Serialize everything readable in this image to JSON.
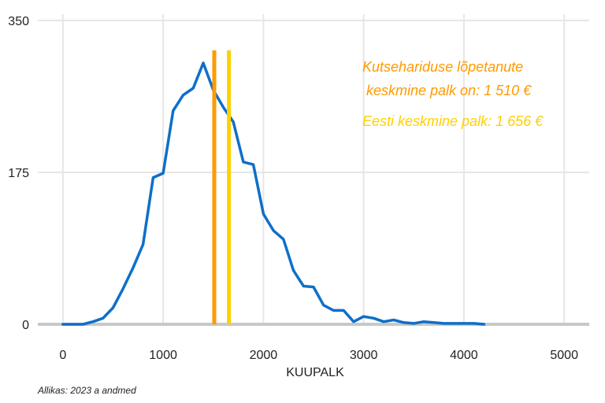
{
  "chart_data": {
    "type": "line",
    "xlabel": "KUUPALK",
    "ylabel": "",
    "xlim": [
      -250,
      5250
    ],
    "ylim": [
      0,
      350
    ],
    "x_ticks": [
      0,
      1000,
      2000,
      3000,
      4000,
      5000
    ],
    "y_ticks": [
      0,
      175,
      350
    ],
    "grid": true,
    "series": [
      {
        "color": "#0e6fc9",
        "points": [
          [
            0,
            0
          ],
          [
            100,
            0
          ],
          [
            200,
            0
          ],
          [
            300,
            3
          ],
          [
            400,
            7
          ],
          [
            500,
            19
          ],
          [
            600,
            41
          ],
          [
            700,
            65
          ],
          [
            800,
            92
          ],
          [
            900,
            169
          ],
          [
            1000,
            174
          ],
          [
            1100,
            246
          ],
          [
            1200,
            264
          ],
          [
            1300,
            272
          ],
          [
            1400,
            301
          ],
          [
            1500,
            270
          ],
          [
            1600,
            250
          ],
          [
            1700,
            233
          ],
          [
            1800,
            187
          ],
          [
            1900,
            184
          ],
          [
            2000,
            127
          ],
          [
            2100,
            108
          ],
          [
            2200,
            98
          ],
          [
            2300,
            62
          ],
          [
            2400,
            44
          ],
          [
            2500,
            43
          ],
          [
            2600,
            22
          ],
          [
            2700,
            16
          ],
          [
            2800,
            16
          ],
          [
            2900,
            3
          ],
          [
            3000,
            9
          ],
          [
            3100,
            7
          ],
          [
            3200,
            3
          ],
          [
            3300,
            5
          ],
          [
            3400,
            2
          ],
          [
            3500,
            1
          ],
          [
            3600,
            3
          ],
          [
            3700,
            2
          ],
          [
            3800,
            1
          ],
          [
            3900,
            1
          ],
          [
            4000,
            1
          ],
          [
            4100,
            1
          ],
          [
            4200,
            0
          ]
        ]
      }
    ],
    "vlines": [
      {
        "x": 1510,
        "color": "#ff9a00"
      },
      {
        "x": 1656,
        "color": "#ffd000"
      }
    ],
    "annotations": [
      {
        "lines": [
          "Kutsehariduse lõpetanute",
          " keskmine palk on: 1 510 €"
        ],
        "color": "#ff9a00"
      },
      {
        "lines": [
          "Eesti keskmine palk: 1 656 €"
        ],
        "color": "#ffd000"
      }
    ],
    "source": "Allikas: 2023 a andmed"
  }
}
